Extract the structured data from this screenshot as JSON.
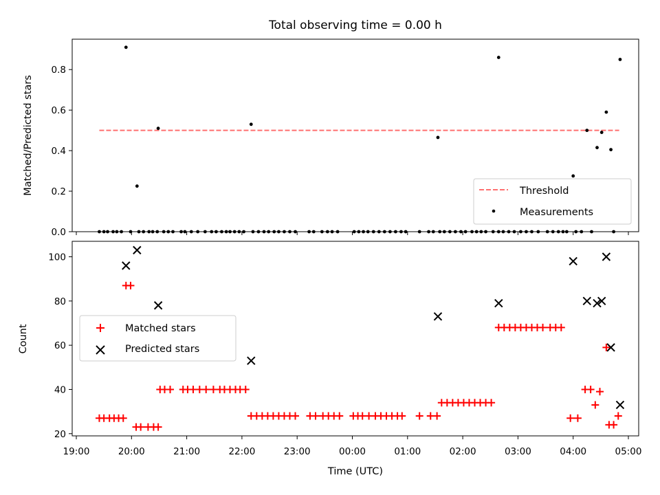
{
  "chart_data": [
    {
      "type": "scatter",
      "title": "Total observing time = 0.00 h",
      "xlabel": "",
      "ylabel": "Matched/Predicted stars",
      "xlim": [
        "19:00",
        "05:20"
      ],
      "ylim": [
        0,
        0.95
      ],
      "yticks": [
        "0.0",
        "0.2",
        "0.4",
        "0.6",
        "0.8"
      ],
      "grid": false,
      "legend_position": "lower right",
      "threshold": {
        "name": "Threshold",
        "value": 0.5,
        "x_range": [
          "19:25",
          "04:50"
        ],
        "color": "#ff6f6f",
        "style": "dashed"
      },
      "series": [
        {
          "name": "Measurements",
          "marker": "dot",
          "color": "#000000",
          "points": [
            [
              "19:54",
              0.91
            ],
            [
              "20:06",
              0.225
            ],
            [
              "20:29",
              0.51
            ],
            [
              "22:10",
              0.53
            ],
            [
              "01:33",
              0.465
            ],
            [
              "02:39",
              0.86
            ],
            [
              "04:00",
              0.275
            ],
            [
              "04:15",
              0.5
            ],
            [
              "04:26",
              0.415
            ],
            [
              "04:31",
              0.49
            ],
            [
              "04:36",
              0.59
            ],
            [
              "04:41",
              0.405
            ],
            [
              "04:51",
              0.85
            ],
            [
              "19:25",
              0
            ],
            [
              "19:30",
              0
            ],
            [
              "19:34",
              0
            ],
            [
              "19:40",
              0
            ],
            [
              "19:44",
              0
            ],
            [
              "19:49",
              0
            ],
            [
              "19:59",
              0
            ],
            [
              "20:08",
              0
            ],
            [
              "20:13",
              0
            ],
            [
              "20:19",
              0
            ],
            [
              "20:23",
              0
            ],
            [
              "20:28",
              0
            ],
            [
              "20:35",
              0
            ],
            [
              "20:40",
              0
            ],
            [
              "20:45",
              0
            ],
            [
              "20:54",
              0
            ],
            [
              "20:58",
              0
            ],
            [
              "21:05",
              0
            ],
            [
              "21:12",
              0
            ],
            [
              "21:20",
              0
            ],
            [
              "21:27",
              0
            ],
            [
              "21:32",
              0
            ],
            [
              "21:38",
              0
            ],
            [
              "21:43",
              0
            ],
            [
              "21:47",
              0
            ],
            [
              "21:52",
              0
            ],
            [
              "21:57",
              0
            ],
            [
              "22:02",
              0
            ],
            [
              "22:12",
              0
            ],
            [
              "22:18",
              0
            ],
            [
              "22:24",
              0
            ],
            [
              "22:29",
              0
            ],
            [
              "22:35",
              0
            ],
            [
              "22:40",
              0
            ],
            [
              "22:46",
              0
            ],
            [
              "22:52",
              0
            ],
            [
              "22:58",
              0
            ],
            [
              "23:13",
              0
            ],
            [
              "23:18",
              0
            ],
            [
              "23:27",
              0
            ],
            [
              "23:33",
              0
            ],
            [
              "23:38",
              0
            ],
            [
              "23:44",
              0
            ],
            [
              "24:02",
              0
            ],
            [
              "24:07",
              0
            ],
            [
              "24:12",
              0
            ],
            [
              "24:17",
              0
            ],
            [
              "24:23",
              0
            ],
            [
              "24:29",
              0
            ],
            [
              "24:35",
              0
            ],
            [
              "24:41",
              0
            ],
            [
              "24:47",
              0
            ],
            [
              "24:53",
              0
            ],
            [
              "24:58",
              0
            ],
            [
              "25:13",
              0
            ],
            [
              "25:23",
              0
            ],
            [
              "25:28",
              0
            ],
            [
              "25:35",
              0
            ],
            [
              "25:40",
              0
            ],
            [
              "25:46",
              0
            ],
            [
              "25:52",
              0
            ],
            [
              "25:58",
              0
            ],
            [
              "26:03",
              0
            ],
            [
              "26:10",
              0
            ],
            [
              "26:15",
              0
            ],
            [
              "26:20",
              0
            ],
            [
              "26:25",
              0
            ],
            [
              "26:33",
              0
            ],
            [
              "26:39",
              0
            ],
            [
              "26:44",
              0
            ],
            [
              "26:50",
              0
            ],
            [
              "26:56",
              0
            ],
            [
              "27:03",
              0
            ],
            [
              "27:09",
              0
            ],
            [
              "27:15",
              0
            ],
            [
              "27:22",
              0
            ],
            [
              "27:32",
              0
            ],
            [
              "27:38",
              0
            ],
            [
              "27:44",
              0
            ],
            [
              "27:49",
              0
            ],
            [
              "27:53",
              0
            ],
            [
              "28:03",
              0
            ],
            [
              "28:09",
              0
            ],
            [
              "28:20",
              0
            ],
            [
              "28:44",
              0
            ]
          ]
        }
      ]
    },
    {
      "type": "scatter",
      "title": "",
      "xlabel": "Time (UTC)",
      "ylabel": "Count",
      "xlim": [
        "19:00",
        "05:20"
      ],
      "ylim": [
        19,
        107
      ],
      "yticks": [
        "20",
        "40",
        "60",
        "80",
        "100"
      ],
      "xticks": [
        "19:00",
        "20:00",
        "21:00",
        "22:00",
        "23:00",
        "00:00",
        "01:00",
        "02:00",
        "03:00",
        "04:00",
        "05:00"
      ],
      "grid": false,
      "legend_position": "center left",
      "series": [
        {
          "name": "Matched stars",
          "marker": "plus",
          "color": "#ff0000",
          "points": [
            [
              "19:25",
              27
            ],
            [
              "19:30",
              27
            ],
            [
              "19:36",
              27
            ],
            [
              "19:41",
              27
            ],
            [
              "19:46",
              27
            ],
            [
              "19:51",
              27
            ],
            [
              "19:54",
              87
            ],
            [
              "19:59",
              87
            ],
            [
              "20:05",
              23
            ],
            [
              "20:10",
              23
            ],
            [
              "20:18",
              23
            ],
            [
              "20:24",
              23
            ],
            [
              "20:29",
              23
            ],
            [
              "20:31",
              40
            ],
            [
              "20:36",
              40
            ],
            [
              "20:42",
              40
            ],
            [
              "20:56",
              40
            ],
            [
              "21:01",
              40
            ],
            [
              "21:07",
              40
            ],
            [
              "21:14",
              40
            ],
            [
              "21:21",
              40
            ],
            [
              "21:29",
              40
            ],
            [
              "21:36",
              40
            ],
            [
              "21:41",
              40
            ],
            [
              "21:47",
              40
            ],
            [
              "21:53",
              40
            ],
            [
              "21:58",
              40
            ],
            [
              "22:04",
              40
            ],
            [
              "22:10",
              28
            ],
            [
              "22:16",
              28
            ],
            [
              "22:22",
              28
            ],
            [
              "22:28",
              28
            ],
            [
              "22:34",
              28
            ],
            [
              "22:40",
              28
            ],
            [
              "22:46",
              28
            ],
            [
              "22:52",
              28
            ],
            [
              "22:58",
              28
            ],
            [
              "23:14",
              28
            ],
            [
              "23:20",
              28
            ],
            [
              "23:28",
              28
            ],
            [
              "23:34",
              28
            ],
            [
              "23:40",
              28
            ],
            [
              "23:46",
              28
            ],
            [
              "24:01",
              28
            ],
            [
              "24:06",
              28
            ],
            [
              "24:11",
              28
            ],
            [
              "24:18",
              28
            ],
            [
              "24:25",
              28
            ],
            [
              "24:31",
              28
            ],
            [
              "24:37",
              28
            ],
            [
              "24:43",
              28
            ],
            [
              "24:49",
              28
            ],
            [
              "24:54",
              28
            ],
            [
              "25:13",
              28
            ],
            [
              "25:25",
              28
            ],
            [
              "25:32",
              28
            ],
            [
              "25:37",
              34
            ],
            [
              "25:43",
              34
            ],
            [
              "25:49",
              34
            ],
            [
              "25:55",
              34
            ],
            [
              "26:01",
              34
            ],
            [
              "26:07",
              34
            ],
            [
              "26:13",
              34
            ],
            [
              "26:19",
              34
            ],
            [
              "26:25",
              34
            ],
            [
              "26:31",
              34
            ],
            [
              "26:39",
              68
            ],
            [
              "26:45",
              68
            ],
            [
              "26:51",
              68
            ],
            [
              "26:57",
              68
            ],
            [
              "27:03",
              68
            ],
            [
              "27:09",
              68
            ],
            [
              "27:15",
              68
            ],
            [
              "27:21",
              68
            ],
            [
              "27:27",
              68
            ],
            [
              "27:35",
              68
            ],
            [
              "27:41",
              68
            ],
            [
              "27:47",
              68
            ],
            [
              "27:57",
              27
            ],
            [
              "28:05",
              27
            ],
            [
              "28:13",
              40
            ],
            [
              "28:19",
              40
            ],
            [
              "28:24",
              33
            ],
            [
              "28:29",
              39
            ],
            [
              "28:36",
              59
            ],
            [
              "28:39",
              24
            ],
            [
              "28:44",
              24
            ],
            [
              "28:49",
              28
            ]
          ]
        },
        {
          "name": "Predicted stars",
          "marker": "x",
          "color": "#000000",
          "points": [
            [
              "19:54",
              96
            ],
            [
              "20:06",
              103
            ],
            [
              "20:29",
              78
            ],
            [
              "22:10",
              53
            ],
            [
              "01:33",
              73
            ],
            [
              "02:39",
              79
            ],
            [
              "04:00",
              98
            ],
            [
              "04:15",
              80
            ],
            [
              "04:26",
              79
            ],
            [
              "04:31",
              80
            ],
            [
              "04:36",
              100
            ],
            [
              "04:41",
              59
            ],
            [
              "04:51",
              33
            ]
          ]
        }
      ]
    }
  ]
}
